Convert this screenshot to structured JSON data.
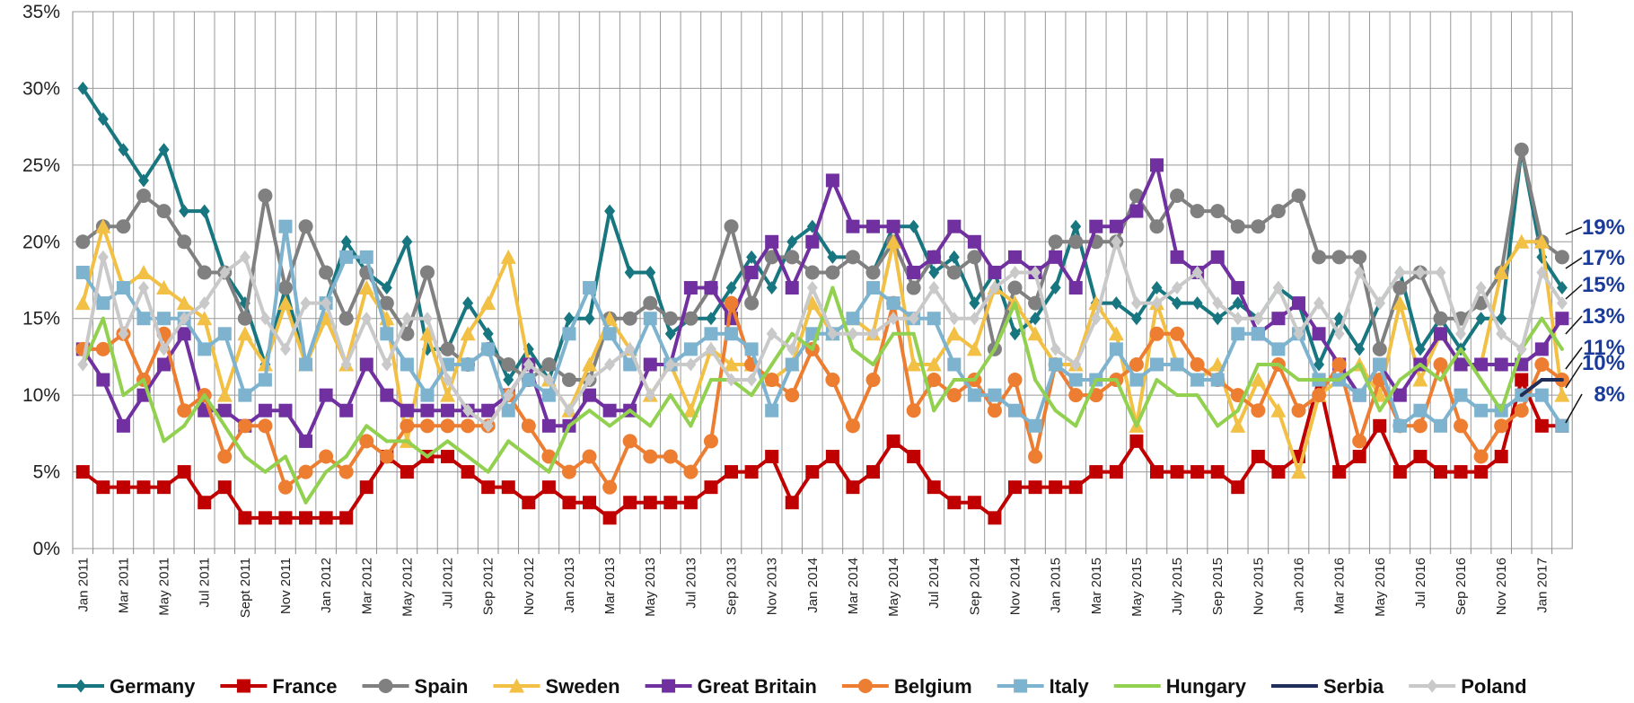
{
  "chart_data": {
    "type": "line",
    "categories": [
      "Jan 2011",
      null,
      "Mar 2011",
      null,
      "May 2011",
      null,
      "Jul 2011",
      null,
      "Sept 2011",
      null,
      "Nov 2011",
      null,
      "Jan 2012",
      null,
      "Mar 2012",
      null,
      "May 2012",
      null,
      "Jul 2012",
      null,
      "Sep 2012",
      null,
      "Nov 2012",
      null,
      "Jan 2013",
      null,
      "Mar 2013",
      null,
      "May 2013",
      null,
      "Jul 2013",
      null,
      "Sep 2013",
      null,
      "Nov 2013",
      null,
      "Jan 2014",
      null,
      "Mar 2014",
      null,
      "May 2014",
      null,
      "Jul 2014",
      null,
      "Sep 2014",
      null,
      "Nov 2014",
      null,
      "Jan 2015",
      null,
      "Mar 2015",
      null,
      "May 2015",
      null,
      "July 2015",
      null,
      "Sep 2015",
      null,
      "Nov 2015",
      null,
      "Jan 2016",
      null,
      "Mar 2016",
      null,
      "May 2016",
      null,
      "Jul 2016",
      null,
      "Sep 2016",
      null,
      "Nov 2016",
      null,
      "Jan 2017",
      null
    ],
    "ylim": [
      0,
      35
    ],
    "yticks": [
      {
        "value": 0,
        "label": "0%"
      },
      {
        "value": 5,
        "label": "5%"
      },
      {
        "value": 10,
        "label": "10%"
      },
      {
        "value": 15,
        "label": "15%"
      },
      {
        "value": 20,
        "label": "20%"
      },
      {
        "value": 25,
        "label": "25%"
      },
      {
        "value": 30,
        "label": "30%"
      },
      {
        "value": 35,
        "label": "35%"
      }
    ],
    "grid": true,
    "legend": "bottom",
    "end_labels": [
      "19%",
      "17%",
      "15%",
      "13%",
      "11%",
      "10%",
      "8%"
    ],
    "series": [
      {
        "name": "Germany",
        "color": "#17767f",
        "marker": "diamond",
        "values": [
          30,
          28,
          26,
          24,
          26,
          22,
          22,
          18,
          16,
          12,
          17,
          12,
          16,
          20,
          18,
          17,
          20,
          13,
          13,
          16,
          14,
          11,
          13,
          11,
          15,
          15,
          22,
          18,
          18,
          14,
          15,
          15,
          17,
          19,
          17,
          20,
          21,
          19,
          19,
          18,
          21,
          21,
          18,
          19,
          16,
          18,
          14,
          15,
          17,
          21,
          16,
          16,
          15,
          17,
          16,
          16,
          15,
          16,
          15,
          17,
          16,
          12,
          15,
          13,
          16,
          18,
          13,
          15,
          13,
          15,
          15,
          26,
          19,
          17
        ]
      },
      {
        "name": "France",
        "color": "#c00000",
        "marker": "square",
        "values": [
          5,
          4,
          4,
          4,
          4,
          5,
          3,
          4,
          2,
          2,
          2,
          2,
          2,
          2,
          4,
          6,
          5,
          6,
          6,
          5,
          4,
          4,
          3,
          4,
          3,
          3,
          2,
          3,
          3,
          3,
          3,
          4,
          5,
          5,
          6,
          3,
          5,
          6,
          4,
          5,
          7,
          6,
          4,
          3,
          3,
          2,
          4,
          4,
          4,
          4,
          5,
          5,
          7,
          5,
          5,
          5,
          5,
          4,
          6,
          5,
          6,
          11,
          5,
          6,
          8,
          5,
          6,
          5,
          5,
          5,
          6,
          11,
          8,
          8
        ]
      },
      {
        "name": "Spain",
        "color": "#808080",
        "marker": "circle",
        "values": [
          20,
          21,
          21,
          23,
          22,
          20,
          18,
          18,
          15,
          23,
          17,
          21,
          18,
          15,
          18,
          16,
          14,
          18,
          13,
          12,
          13,
          12,
          11,
          12,
          11,
          11,
          15,
          15,
          16,
          15,
          15,
          17,
          21,
          16,
          19,
          19,
          18,
          18,
          19,
          18,
          20,
          17,
          19,
          18,
          19,
          13,
          17,
          16,
          20,
          20,
          20,
          20,
          23,
          21,
          23,
          22,
          22,
          21,
          21,
          22,
          23,
          19,
          19,
          19,
          13,
          17,
          18,
          15,
          15,
          16,
          18,
          26,
          20,
          19
        ]
      },
      {
        "name": "Sweden",
        "color": "#f2c044",
        "marker": "triangle",
        "values": [
          16,
          21,
          17,
          18,
          17,
          16,
          15,
          10,
          14,
          12,
          16,
          12,
          15,
          12,
          17,
          15,
          7,
          14,
          10,
          14,
          16,
          19,
          12,
          11,
          9,
          12,
          15,
          13,
          10,
          12,
          9,
          13,
          12,
          12,
          11,
          12,
          16,
          14,
          15,
          14,
          20,
          12,
          12,
          14,
          13,
          17,
          16,
          14,
          12,
          12,
          16,
          14,
          8,
          16,
          12,
          11,
          12,
          8,
          11,
          9,
          5,
          10,
          11,
          12,
          10,
          16,
          11,
          14,
          12,
          12,
          18,
          20,
          20,
          10
        ]
      },
      {
        "name": "Great Britain",
        "color": "#7030a0",
        "marker": "square",
        "values": [
          13,
          11,
          8,
          10,
          12,
          14,
          9,
          9,
          8,
          9,
          9,
          7,
          10,
          9,
          12,
          10,
          9,
          9,
          9,
          9,
          9,
          10,
          12,
          8,
          8,
          10,
          9,
          9,
          12,
          12,
          17,
          17,
          15,
          18,
          20,
          17,
          20,
          24,
          21,
          21,
          21,
          18,
          19,
          21,
          20,
          18,
          19,
          18,
          19,
          17,
          21,
          21,
          22,
          25,
          19,
          18,
          19,
          17,
          14,
          15,
          16,
          14,
          12,
          10,
          12,
          10,
          12,
          14,
          12,
          12,
          12,
          12,
          13,
          15
        ]
      },
      {
        "name": "Belgium",
        "color": "#ed7d31",
        "marker": "circle",
        "values": [
          13,
          13,
          14,
          11,
          14,
          9,
          10,
          6,
          8,
          8,
          4,
          5,
          6,
          5,
          7,
          6,
          8,
          8,
          8,
          8,
          8,
          10,
          8,
          6,
          5,
          6,
          4,
          7,
          6,
          6,
          5,
          7,
          16,
          12,
          11,
          10,
          13,
          11,
          8,
          11,
          16,
          9,
          11,
          10,
          11,
          9,
          11,
          6,
          12,
          10,
          10,
          11,
          12,
          14,
          14,
          12,
          11,
          10,
          9,
          12,
          9,
          10,
          12,
          7,
          11,
          8,
          8,
          12,
          8,
          6,
          8,
          9,
          12,
          11
        ]
      },
      {
        "name": "Italy",
        "color": "#7db3cf",
        "marker": "square",
        "values": [
          18,
          16,
          17,
          15,
          15,
          15,
          13,
          14,
          10,
          11,
          21,
          12,
          16,
          19,
          19,
          14,
          12,
          10,
          12,
          12,
          13,
          9,
          11,
          10,
          14,
          17,
          14,
          12,
          15,
          12,
          13,
          14,
          14,
          13,
          9,
          12,
          14,
          14,
          15,
          17,
          16,
          15,
          15,
          12,
          10,
          10,
          9,
          8,
          12,
          11,
          11,
          13,
          11,
          12,
          12,
          11,
          11,
          14,
          14,
          13,
          14,
          11,
          11,
          10,
          12,
          8,
          9,
          8,
          10,
          9,
          9,
          10,
          10,
          8
        ]
      },
      {
        "name": "Hungary",
        "color": "#92d050",
        "marker": "none",
        "values": [
          12,
          15,
          10,
          11,
          7,
          8,
          10,
          8,
          6,
          5,
          6,
          3,
          5,
          6,
          8,
          7,
          7,
          6,
          7,
          6,
          5,
          7,
          6,
          5,
          8,
          9,
          8,
          9,
          8,
          10,
          8,
          11,
          11,
          10,
          12,
          14,
          13,
          17,
          13,
          12,
          14,
          14,
          9,
          11,
          11,
          13,
          16,
          11,
          9,
          8,
          11,
          11,
          8,
          11,
          10,
          10,
          8,
          9,
          12,
          12,
          11,
          11,
          11,
          12,
          9,
          11,
          12,
          11,
          13,
          11,
          9,
          13,
          15,
          13
        ]
      },
      {
        "name": "Serbia",
        "color": "#1f2d5a",
        "marker": "none",
        "values": [
          null,
          null,
          null,
          null,
          null,
          null,
          null,
          null,
          null,
          null,
          null,
          null,
          null,
          null,
          null,
          null,
          null,
          null,
          null,
          null,
          null,
          null,
          null,
          null,
          null,
          null,
          null,
          null,
          null,
          null,
          null,
          null,
          null,
          null,
          null,
          null,
          null,
          null,
          null,
          null,
          null,
          null,
          null,
          null,
          null,
          null,
          null,
          null,
          null,
          null,
          null,
          null,
          null,
          null,
          null,
          null,
          null,
          null,
          null,
          null,
          null,
          null,
          null,
          null,
          null,
          null,
          null,
          null,
          null,
          null,
          null,
          10,
          11,
          11
        ]
      },
      {
        "name": "Poland",
        "color": "#c9c9c9",
        "marker": "diamond",
        "values": [
          12,
          19,
          14,
          17,
          13,
          15,
          16,
          18,
          19,
          15,
          13,
          16,
          16,
          12,
          15,
          12,
          15,
          15,
          11,
          9,
          8,
          10,
          12,
          11,
          9,
          11,
          12,
          13,
          10,
          12,
          12,
          13,
          11,
          11,
          14,
          13,
          17,
          14,
          14,
          14,
          15,
          15,
          17,
          15,
          15,
          17,
          18,
          18,
          13,
          12,
          15,
          20,
          16,
          16,
          17,
          18,
          16,
          15,
          15,
          17,
          14,
          16,
          14,
          18,
          16,
          18,
          18,
          18,
          14,
          17,
          14,
          13,
          18,
          16
        ]
      }
    ]
  }
}
